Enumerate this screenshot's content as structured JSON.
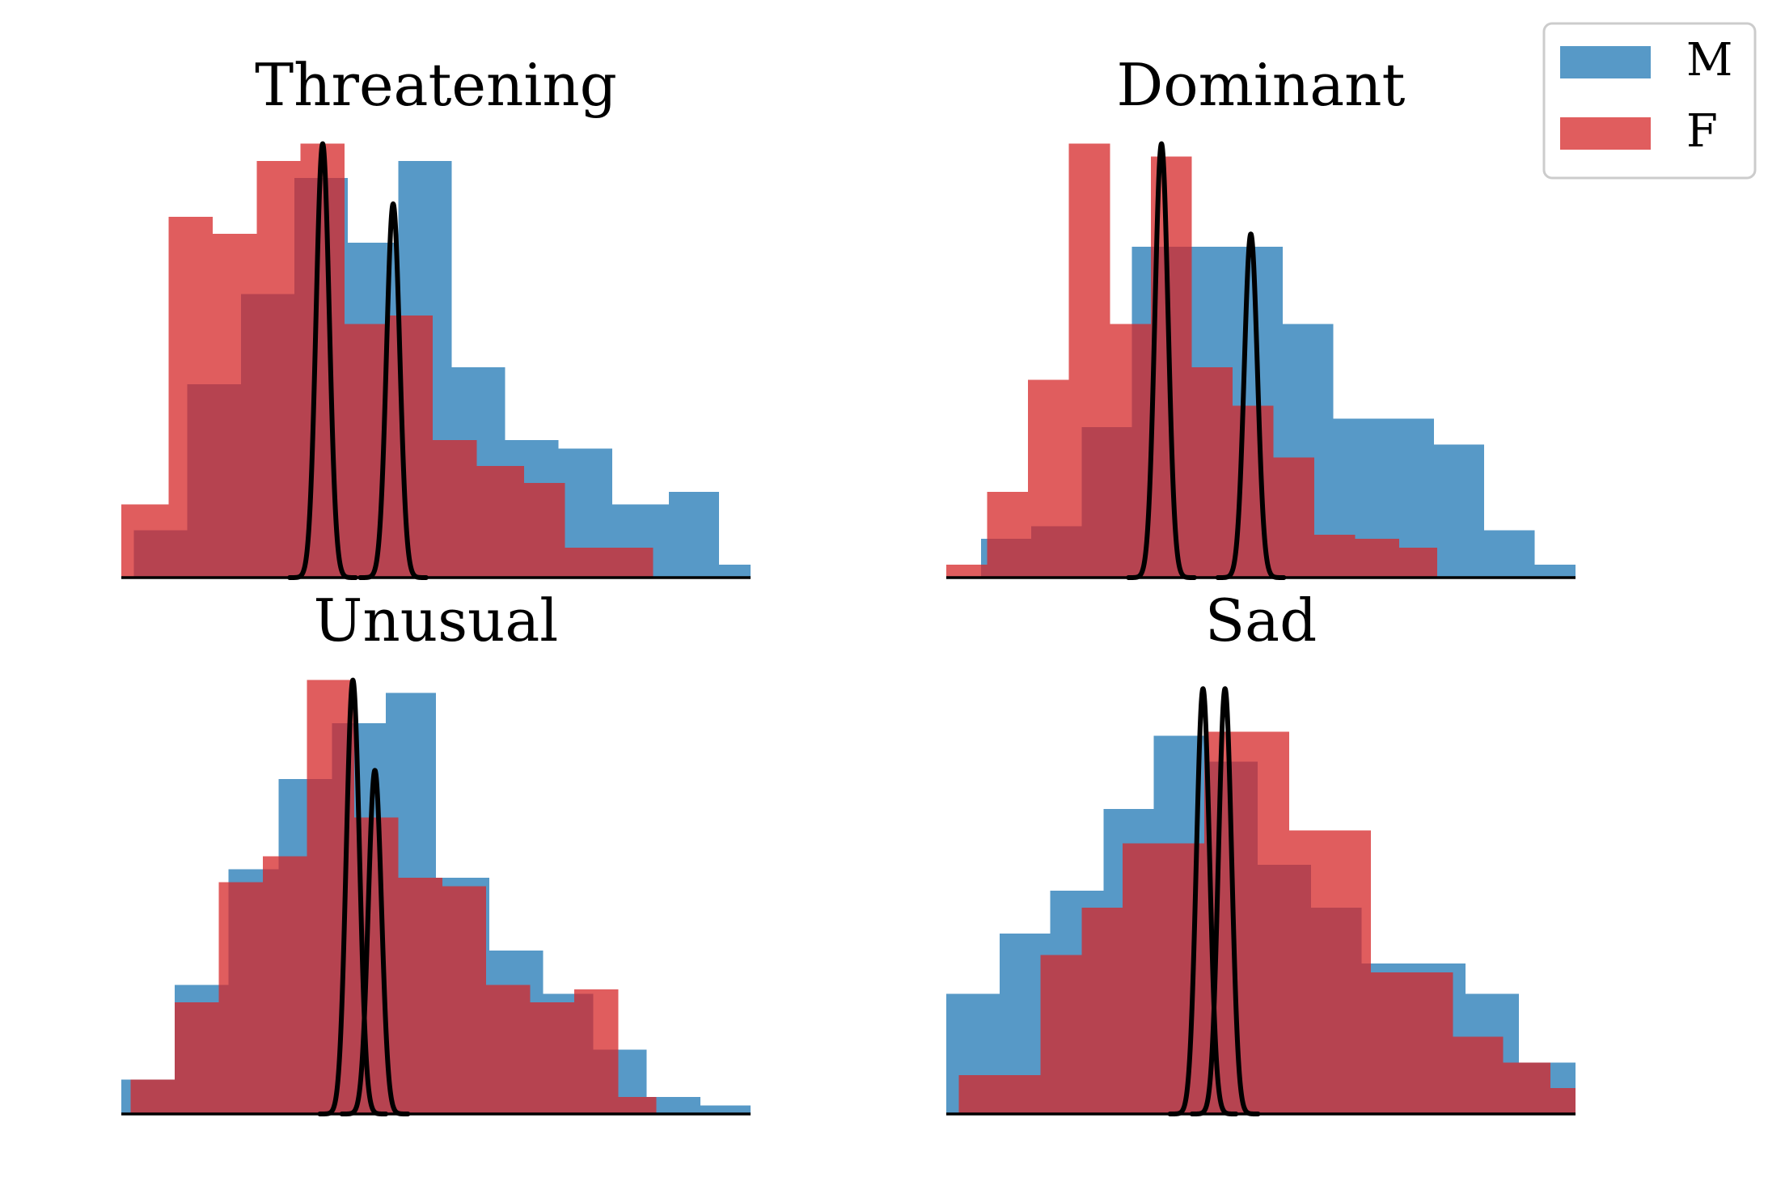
{
  "colors": {
    "male": "#1f77b4",
    "female": "#d62728",
    "curve": "#000000",
    "axis": "#000000"
  },
  "legend": {
    "placement": "top-right",
    "entries": [
      {
        "label": "M",
        "color_key": "male"
      },
      {
        "label": "F",
        "color_key": "female"
      }
    ]
  },
  "chart_data": [
    {
      "type": "bar",
      "title": "Threatening",
      "xlim": [
        0,
        1
      ],
      "ylim": [
        0,
        1
      ],
      "series": [
        {
          "name": "M",
          "edges": [
            0.02,
            0.105,
            0.19,
            0.275,
            0.36,
            0.44,
            0.525,
            0.61,
            0.695,
            0.78,
            0.87,
            0.95,
            1.0
          ],
          "values": [
            0.11,
            0.45,
            0.66,
            0.93,
            0.78,
            0.97,
            0.49,
            0.32,
            0.3,
            0.17,
            0.2,
            0.03
          ]
        },
        {
          "name": "F",
          "edges": [
            0.0,
            0.075,
            0.145,
            0.215,
            0.285,
            0.355,
            0.425,
            0.495,
            0.565,
            0.64,
            0.705,
            0.785,
            0.845
          ],
          "values": [
            0.17,
            0.84,
            0.8,
            0.97,
            1.01,
            0.59,
            0.61,
            0.32,
            0.26,
            0.22,
            0.07,
            0.07
          ]
        }
      ],
      "curves": [
        {
          "mean": 0.32,
          "sd": 0.0105,
          "peak": 1.01
        },
        {
          "mean": 0.432,
          "sd": 0.0105,
          "peak": 0.87
        }
      ]
    },
    {
      "type": "bar",
      "title": "Dominant",
      "xlim": [
        0,
        1
      ],
      "ylim": [
        0,
        1
      ],
      "series": [
        {
          "name": "M",
          "edges": [
            0.055,
            0.135,
            0.215,
            0.295,
            0.375,
            0.455,
            0.535,
            0.615,
            0.695,
            0.775,
            0.855,
            0.935,
            1.0
          ],
          "values": [
            0.09,
            0.12,
            0.35,
            0.77,
            0.77,
            0.77,
            0.59,
            0.37,
            0.37,
            0.31,
            0.11,
            0.03
          ]
        },
        {
          "name": "F",
          "edges": [
            0.0,
            0.065,
            0.13,
            0.195,
            0.26,
            0.325,
            0.39,
            0.455,
            0.52,
            0.585,
            0.65,
            0.72,
            0.78
          ],
          "values": [
            0.03,
            0.2,
            0.46,
            1.01,
            0.59,
            0.98,
            0.49,
            0.4,
            0.28,
            0.1,
            0.09,
            0.07
          ]
        }
      ],
      "curves": [
        {
          "mean": 0.342,
          "sd": 0.0105,
          "peak": 1.01
        },
        {
          "mean": 0.484,
          "sd": 0.0105,
          "peak": 0.8
        }
      ]
    },
    {
      "type": "bar",
      "title": "Unusual",
      "xlim": [
        0,
        1
      ],
      "ylim": [
        0,
        1
      ],
      "series": [
        {
          "name": "M",
          "edges": [
            0.0,
            0.085,
            0.17,
            0.25,
            0.335,
            0.42,
            0.5,
            0.585,
            0.67,
            0.75,
            0.835,
            0.92,
            1.0
          ],
          "values": [
            0.08,
            0.3,
            0.57,
            0.78,
            0.91,
            0.98,
            0.55,
            0.38,
            0.28,
            0.15,
            0.04,
            0.02
          ]
        },
        {
          "name": "F",
          "edges": [
            0.015,
            0.085,
            0.155,
            0.225,
            0.295,
            0.37,
            0.44,
            0.51,
            0.58,
            0.65,
            0.72,
            0.79,
            0.85
          ],
          "values": [
            0.08,
            0.26,
            0.54,
            0.6,
            1.01,
            0.69,
            0.55,
            0.53,
            0.3,
            0.26,
            0.29,
            0.04
          ]
        }
      ],
      "curves": [
        {
          "mean": 0.368,
          "sd": 0.0105,
          "peak": 1.01
        },
        {
          "mean": 0.403,
          "sd": 0.0105,
          "peak": 0.8
        }
      ]
    },
    {
      "type": "bar",
      "title": "Sad",
      "xlim": [
        0,
        1
      ],
      "ylim": [
        0,
        1
      ],
      "series": [
        {
          "name": "M",
          "edges": [
            0.0,
            0.085,
            0.165,
            0.25,
            0.33,
            0.415,
            0.495,
            0.58,
            0.66,
            0.745,
            0.825,
            0.91,
            1.0
          ],
          "values": [
            0.28,
            0.42,
            0.52,
            0.71,
            0.88,
            0.82,
            0.58,
            0.48,
            0.35,
            0.35,
            0.28,
            0.12
          ]
        },
        {
          "name": "F",
          "edges": [
            0.02,
            0.085,
            0.15,
            0.215,
            0.28,
            0.345,
            0.41,
            0.48,
            0.545,
            0.61,
            0.675,
            0.74,
            0.805,
            0.885,
            0.96,
            1.0
          ],
          "values": [
            0.09,
            0.09,
            0.37,
            0.48,
            0.63,
            0.63,
            0.89,
            0.89,
            0.66,
            0.66,
            0.33,
            0.33,
            0.18,
            0.12,
            0.06
          ]
        }
      ],
      "curves": [
        {
          "mean": 0.408,
          "sd": 0.0105,
          "peak": 0.99
        },
        {
          "mean": 0.443,
          "sd": 0.0105,
          "peak": 0.99
        }
      ]
    }
  ]
}
